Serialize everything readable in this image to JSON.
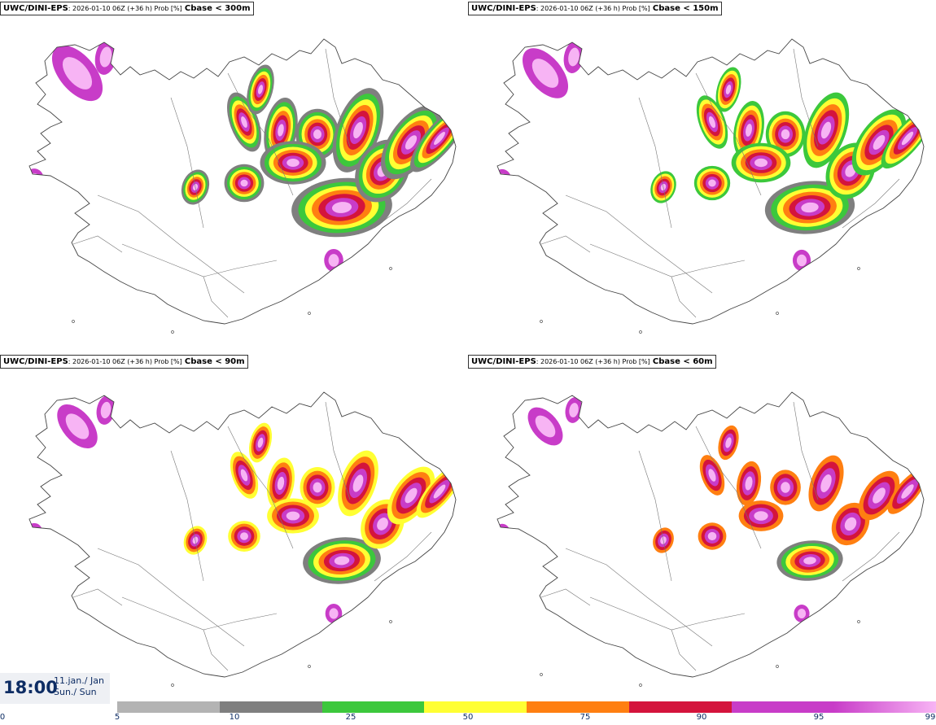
{
  "panels": [
    {
      "model": "UWC/DINI-EPS",
      "meta": ": 2026-01-10 06Z (+36 h) Prob [%]",
      "param": "Cbase < 300m"
    },
    {
      "model": "UWC/DINI-EPS",
      "meta": ": 2026-01-10 06Z (+36 h) Prob [%]",
      "param": "Cbase < 150m"
    },
    {
      "model": "UWC/DINI-EPS",
      "meta": ": 2026-01-10 06Z (+36 h) Prob [%]",
      "param": "Cbase < 90m"
    },
    {
      "model": "UWC/DINI-EPS",
      "meta": ": 2026-01-10 06Z (+36 h) Prob [%]",
      "param": "Cbase < 60m"
    }
  ],
  "valid_time": {
    "clock": "18:00",
    "date_line1": "11.jan./ Jan",
    "date_line2": "Sun./ Sun"
  },
  "legend": {
    "ticks": [
      "0",
      "5",
      "10",
      "25",
      "50",
      "75",
      "90",
      "95",
      "99"
    ],
    "colors": [
      "#b3b3b3",
      "#7f7f7f",
      "#3cc83c",
      "#ffff33",
      "#ff7f11",
      "#d4143c",
      "#c83cc8",
      "#f7b4f4"
    ]
  }
}
